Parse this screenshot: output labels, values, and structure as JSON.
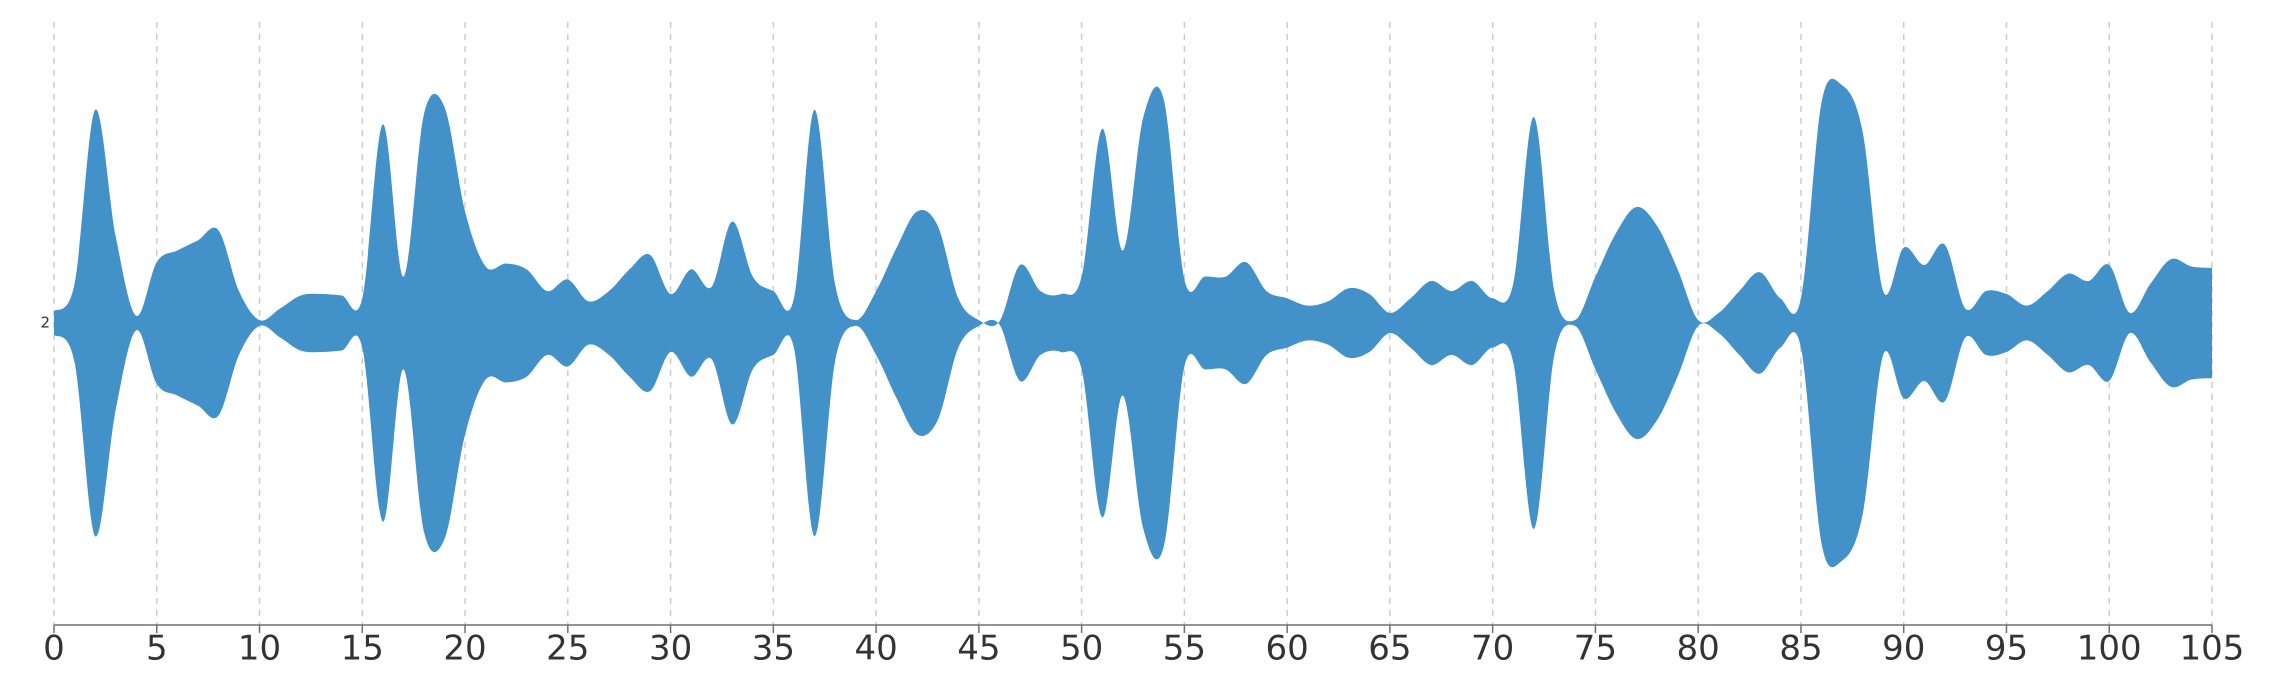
{
  "chart_data": {
    "type": "themeRiver",
    "x": [
      0,
      1,
      2,
      3,
      4,
      5,
      6,
      7,
      8,
      9,
      10,
      11,
      12,
      13,
      14,
      15,
      16,
      17,
      18,
      19,
      20,
      21,
      22,
      23,
      24,
      25,
      26,
      27,
      28,
      29,
      30,
      31,
      32,
      33,
      34,
      35,
      36,
      37,
      38,
      39,
      40,
      41,
      42,
      43,
      44,
      45,
      46,
      47,
      48,
      49,
      50,
      51,
      52,
      53,
      54,
      55,
      56,
      57,
      58,
      59,
      60,
      61,
      62,
      63,
      64,
      65,
      66,
      67,
      68,
      69,
      70,
      71,
      72,
      73,
      74,
      75,
      76,
      77,
      78,
      79,
      80,
      81,
      82,
      83,
      84,
      85,
      86,
      87,
      88,
      89,
      90,
      91,
      92,
      93,
      94,
      95,
      96,
      97,
      98,
      99,
      100,
      101,
      102,
      103,
      104,
      105
    ],
    "series": [
      {
        "name": "2",
        "color": "#4391c9",
        "values": [
          8,
          27,
          147,
          60,
          5,
          42,
          50,
          57,
          64,
          22,
          2,
          10,
          19,
          20,
          19,
          17,
          137,
          32,
          144,
          149,
          77,
          39,
          41,
          37,
          22,
          30,
          15,
          22,
          37,
          47,
          20,
          37,
          25,
          70,
          32,
          22,
          17,
          147,
          27,
          2,
          22,
          52,
          77,
          67,
          17,
          2,
          1,
          40,
          22,
          20,
          32,
          134,
          50,
          142,
          154,
          30,
          32,
          32,
          42,
          22,
          17,
          12,
          15,
          24,
          20,
          7,
          17,
          29,
          22,
          29,
          17,
          27,
          142,
          22,
          2,
          32,
          62,
          80,
          67,
          37,
          2,
          7,
          22,
          35,
          17,
          17,
          152,
          164,
          132,
          22,
          52,
          40,
          54,
          10,
          22,
          20,
          12,
          22,
          34,
          29,
          40,
          7,
          27,
          44,
          39,
          38
        ]
      }
    ],
    "xlim": [
      0,
      105
    ],
    "xticks": [
      0,
      5,
      10,
      15,
      20,
      25,
      30,
      35,
      40,
      45,
      50,
      55,
      60,
      65,
      70,
      75,
      80,
      85,
      90,
      95,
      100,
      105
    ],
    "grid": true
  }
}
